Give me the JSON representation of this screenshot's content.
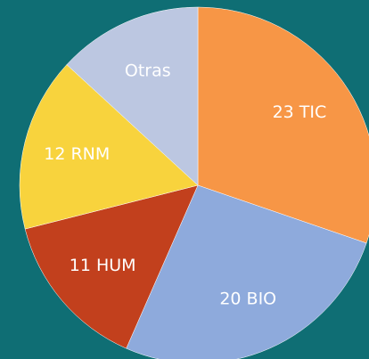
{
  "chart_data": {
    "type": "pie",
    "categories": [
      "23 TIC",
      "20 BIO",
      "11 HUM",
      "12 RNM",
      "Otras"
    ],
    "values": [
      23,
      20,
      11,
      12,
      10
    ],
    "colors": [
      "#f79646",
      "#8eaadc",
      "#c2401d",
      "#f8d33d",
      "#bcc7e1"
    ]
  }
}
